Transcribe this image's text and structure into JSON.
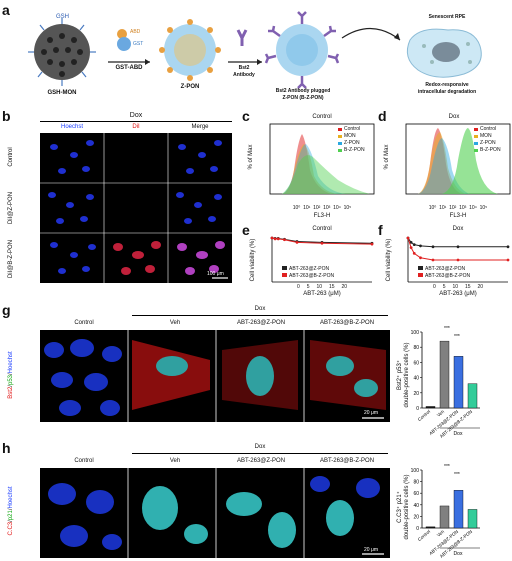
{
  "panel_labels": {
    "a": "a",
    "b": "b",
    "c": "c",
    "d": "d",
    "e": "e",
    "f": "f",
    "g": "g",
    "h": "h"
  },
  "schematic": {
    "gsh_tag": "GSH",
    "gsh_mon": "GSH-MON",
    "abd": "ABD",
    "gst": "GST",
    "gst_abd": "GST-ABD",
    "z_pon": "Z-PON",
    "bst2": "Bst2",
    "antibody": "Antibody",
    "bz_pon_line1": "Bst2 Antibody plugged",
    "bz_pon_line2": "Z-PON (B-Z-PON)",
    "senescent": "Senescent RPE",
    "redox_line1": "Redox-responsive",
    "redox_line2": "intracellular degradation"
  },
  "panel_b": {
    "header": "Dox",
    "cols": [
      "Hoechst",
      "DiI",
      "Merge"
    ],
    "rows": [
      "Control",
      "DiI@Z-PON",
      "DiI@B-Z-PON"
    ],
    "scale": "100 μm"
  },
  "flow": {
    "c_title": "Control",
    "d_title": "Dox",
    "ylabel": "% of Max",
    "xlabel": "FL3-H",
    "ticks_y": [
      "0",
      "20",
      "40",
      "60",
      "80",
      "100"
    ],
    "ticks_x": [
      "10⁰",
      "10¹",
      "10²",
      "10³",
      "10⁴",
      "10⁵"
    ],
    "legend": [
      "Control",
      "MON",
      "Z-PON",
      "B-Z-PON"
    ],
    "colors": [
      "#e02020",
      "#e8b020",
      "#2aa8e0",
      "#50d050"
    ]
  },
  "viability": {
    "e_title": "Control",
    "f_title": "Dox",
    "ylabel": "Cell viability (%)",
    "xlabel": "ABT-263 (μM)",
    "ticks_y": [
      "0",
      "20",
      "40",
      "60",
      "80",
      "100"
    ],
    "ticks_x": [
      "0",
      "5",
      "10",
      "15",
      "20"
    ],
    "legend": [
      "ABT-263@Z-PON",
      "ABT-263@B-Z-PON"
    ]
  },
  "chart_data": [
    {
      "type": "line",
      "title": "Control",
      "xlabel": "ABT-263 (μM)",
      "ylabel": "Cell viability (%)",
      "ylim": [
        0,
        100
      ],
      "xlim": [
        0,
        20
      ],
      "x": [
        0,
        0.625,
        1.25,
        2.5,
        5,
        10,
        20
      ],
      "series": [
        {
          "name": "ABT-263@Z-PON",
          "values": [
            100,
            99,
            99,
            97,
            92,
            90,
            88
          ]
        },
        {
          "name": "ABT-263@B-Z-PON",
          "values": [
            100,
            98,
            98,
            96,
            90,
            88,
            86
          ]
        }
      ]
    },
    {
      "type": "line",
      "title": "Dox",
      "xlabel": "ABT-263 (μM)",
      "ylabel": "Cell viability (%)",
      "ylim": [
        0,
        100
      ],
      "xlim": [
        0,
        20
      ],
      "x": [
        0,
        0.625,
        1.25,
        2.5,
        5,
        10,
        20
      ],
      "series": [
        {
          "name": "ABT-263@Z-PON",
          "values": [
            100,
            90,
            85,
            82,
            80,
            80,
            80
          ]
        },
        {
          "name": "ABT-263@B-Z-PON",
          "values": [
            100,
            78,
            65,
            55,
            50,
            50,
            50
          ]
        }
      ]
    },
    {
      "type": "bar",
      "ylabel": "Bst2⁺ p53⁺ double-positive cells (%)",
      "ylim": [
        0,
        100
      ],
      "categories": [
        "Control",
        "Veh",
        "ABT-263@Z-PON",
        "ABT-263@B-Z-PON"
      ],
      "values": [
        2,
        88,
        68,
        32
      ]
    },
    {
      "type": "bar",
      "ylabel": "C.C3⁺ p21⁺ double-positive cells (%)",
      "ylim": [
        0,
        100
      ],
      "categories": [
        "Control",
        "Veh",
        "ABT-263@Z-PON",
        "ABT-263@B-Z-PON"
      ],
      "values": [
        2,
        38,
        65,
        32
      ]
    }
  ],
  "panel_g": {
    "dox": "Dox",
    "cols": [
      "Control",
      "Veh",
      "ABT-263@Z-PON",
      "ABT-263@B-Z-PON"
    ],
    "side_bst2": "Bst2",
    "side_p53": "p53",
    "side_hoechst": "Hoechst",
    "scale": "20 μm",
    "ylabel_line1": "Bst2⁺ p53⁺",
    "ylabel_line2": "double-positive cells (%)",
    "ticks_y": [
      "0",
      "20",
      "40",
      "60",
      "80",
      "100"
    ],
    "sig": "***",
    "bar_colors": [
      "#1a1a1a",
      "#808080",
      "#3a6fe0",
      "#33cc99"
    ]
  },
  "panel_h": {
    "dox": "Dox",
    "cols": [
      "Control",
      "Veh",
      "ABT-263@Z-PON",
      "ABT-263@B-Z-PON"
    ],
    "side_cc3": "C.C3",
    "side_p21": "p21",
    "side_hoechst": "Hoechst",
    "scale": "20 μm",
    "ylabel_line1": "C.C3⁺ p21⁺",
    "ylabel_line2": "double-positive cells (%)",
    "ticks_y": [
      "0",
      "20",
      "40",
      "60",
      "80",
      "100"
    ],
    "sig": "***"
  }
}
